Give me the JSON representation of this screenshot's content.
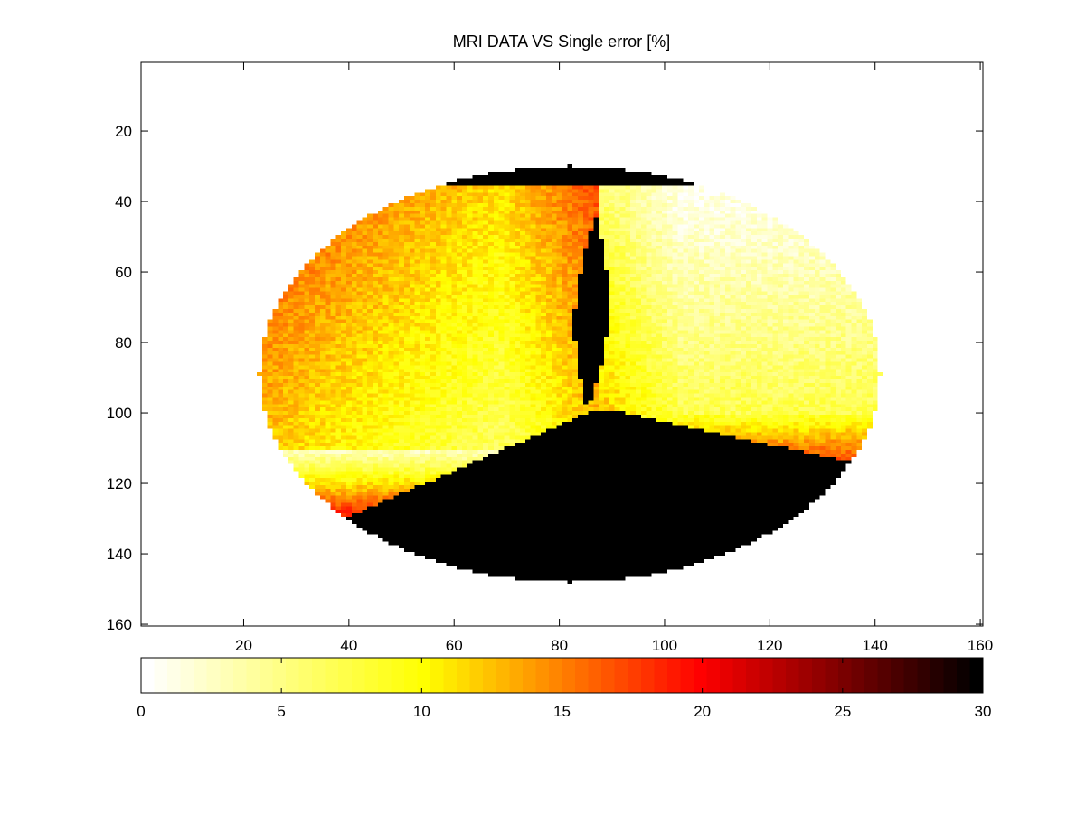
{
  "chart_data": {
    "type": "heatmap",
    "title": "MRI DATA VS Single error [%]",
    "xlabel": "",
    "ylabel": "",
    "x_range": [
      1,
      160
    ],
    "y_range": [
      1,
      160
    ],
    "y_reversed": true,
    "x_ticks": [
      20,
      40,
      60,
      80,
      100,
      120,
      140,
      160
    ],
    "y_ticks": [
      20,
      40,
      60,
      80,
      100,
      120,
      140,
      160
    ],
    "grid": false,
    "colormap": "hot (reversed)",
    "color_range": [
      0,
      30
    ],
    "colorbar": {
      "orientation": "horizontal",
      "placement": "bottom",
      "ticks": [
        0,
        5,
        10,
        15,
        20,
        25,
        30
      ]
    },
    "masked_region": {
      "shape": "ellipse",
      "center": [
        82,
        89
      ],
      "radius_x": 59,
      "radius_y": 59
    },
    "regions": [
      {
        "name": "left lobe",
        "error_range": [
          3,
          22
        ],
        "description_on_chart": ""
      },
      {
        "name": "right lobe",
        "error_range": [
          0,
          12
        ]
      },
      {
        "name": "lower wedge",
        "error_range": [
          30,
          30
        ]
      },
      {
        "name": "central sliver",
        "error_range": [
          30,
          30
        ]
      },
      {
        "name": "top cap",
        "error_range": [
          30,
          30
        ]
      }
    ]
  }
}
